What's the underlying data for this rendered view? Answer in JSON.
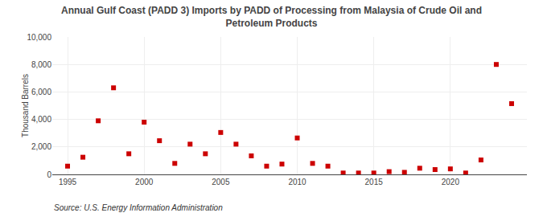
{
  "chart_data": {
    "type": "scatter",
    "title": "Annual Gulf Coast (PADD 3) Imports by PADD of Processing from Malaysia of Crude Oil and\nPetroleum Products",
    "ylabel": "Thousand Barrels",
    "annotations": [
      "Source: U.S. Energy Information Administration"
    ],
    "x": [
      1995,
      1996,
      1997,
      1998,
      1999,
      2000,
      2001,
      2002,
      2003,
      2004,
      2005,
      2006,
      2007,
      2008,
      2009,
      2010,
      2011,
      2012,
      2013,
      2014,
      2015,
      2016,
      2017,
      2018,
      2019,
      2020,
      2021,
      2022,
      2023,
      2024
    ],
    "values": [
      600,
      1250,
      3900,
      6300,
      1500,
      3800,
      2450,
      800,
      2200,
      1500,
      3050,
      2200,
      1350,
      600,
      750,
      2650,
      800,
      600,
      100,
      100,
      100,
      200,
      150,
      450,
      350,
      400,
      100,
      1050,
      8000,
      5150
    ],
    "color": "#cc0000",
    "marker": "square",
    "xlim": [
      1994,
      2025
    ],
    "xticks": [
      1995,
      2000,
      2005,
      2010,
      2015,
      2020
    ],
    "ylim": [
      0,
      10000
    ],
    "yticks": [
      0,
      {
        "value": 2000,
        "label": "2,000"
      },
      {
        "value": 4000,
        "label": "4,000"
      },
      {
        "value": 6000,
        "label": "6,000"
      },
      {
        "value": 8000,
        "label": "8,000"
      },
      {
        "value": 10000,
        "label": "10,000"
      }
    ],
    "grid": true
  }
}
